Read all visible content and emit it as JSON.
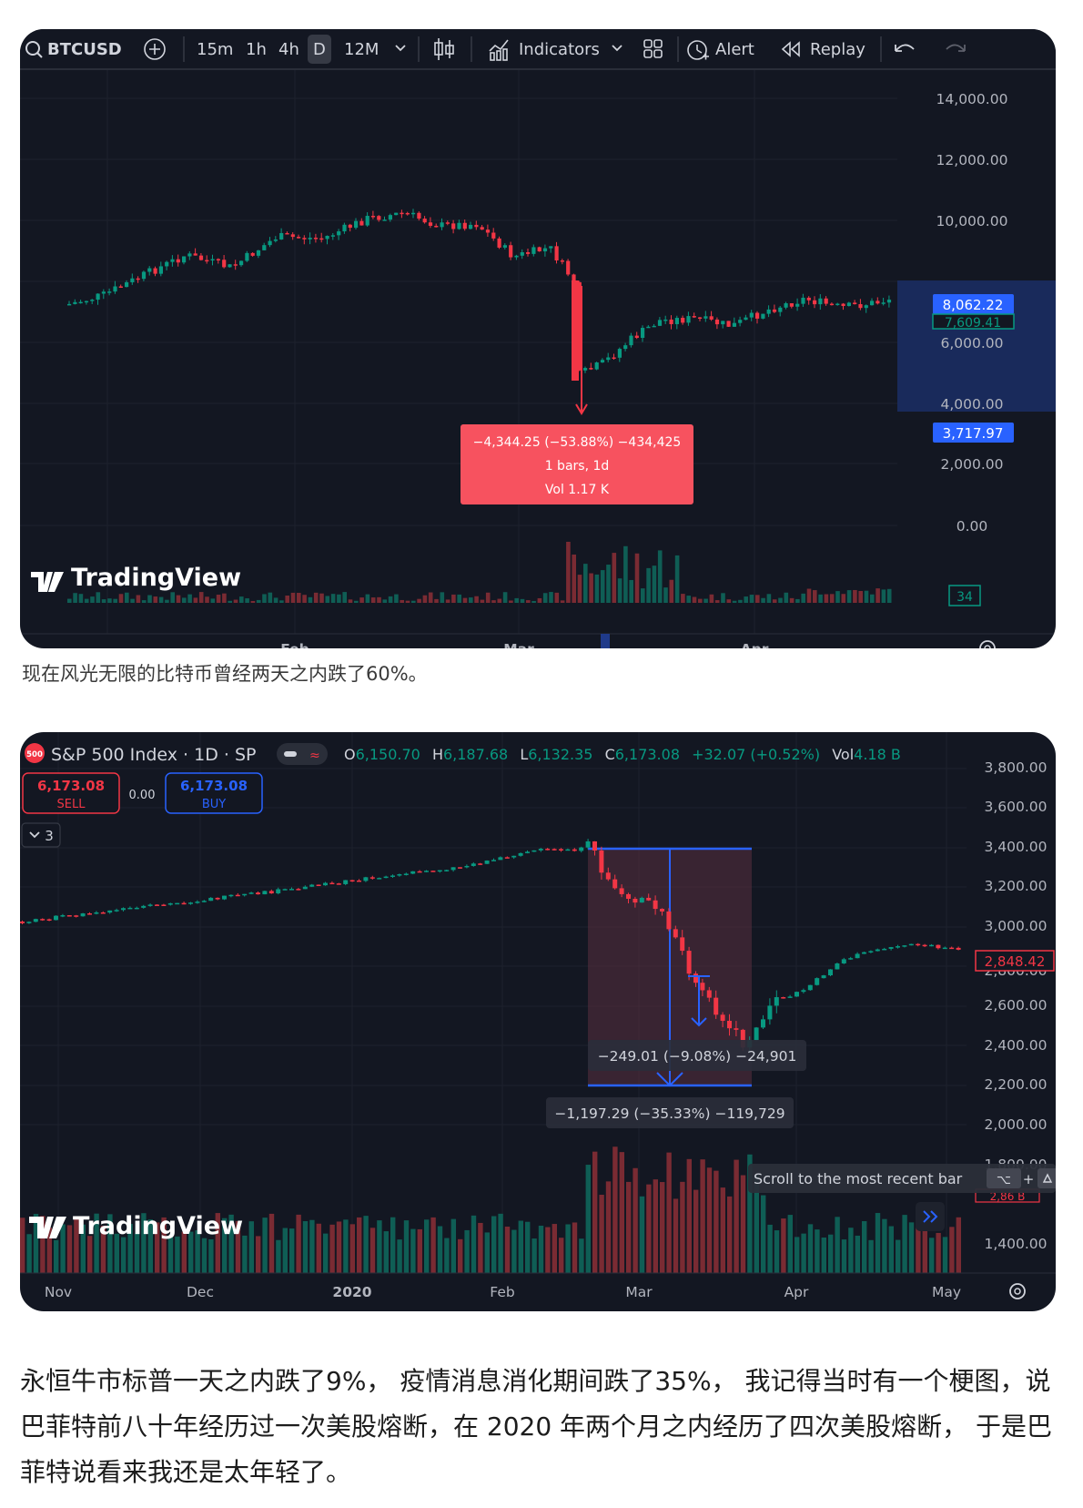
{
  "btc": {
    "toolbar": {
      "symbol": "BTCUSD",
      "intervals": [
        "15m",
        "1h",
        "4h",
        "D",
        "12M"
      ],
      "active_interval": "D",
      "indicators": "Indicators",
      "alert": "Alert",
      "replay": "Replay"
    },
    "price_axis": [
      "14,000.00",
      "12,000.00",
      "10,000.00",
      "6,000.00",
      "2,000.00",
      "0.00"
    ],
    "price_partial": [
      "4,000.00"
    ],
    "time_axis": [
      "Feb",
      "Mar",
      "Apr"
    ],
    "badges": {
      "high": "8,062.22",
      "current": "7,609.41",
      "low": "3,717.97",
      "volume": "34"
    },
    "measure": {
      "line1": "−4,344.25 (−53.88%) −434,425",
      "line2": "1 bars, 1d",
      "line3": "Vol 1.17 K"
    },
    "logo": "TradingView",
    "colors": {
      "up": "#089981",
      "down": "#f23645",
      "bg": "#131722",
      "badge": "#2962ff"
    }
  },
  "btc_caption": "现在风光无限的比特币曾经两天之内跌了60%。",
  "spx": {
    "header": {
      "logo_badge": "500",
      "title": "S&P 500 Index · 1D · SP",
      "o_label": "O",
      "o_val": "6,150.70",
      "h_label": "H",
      "h_val": "6,187.68",
      "l_label": "L",
      "l_val": "6,132.35",
      "c_label": "C",
      "c_val": "6,173.08",
      "change": "+32.07 (+0.52%)",
      "vol_label": "Vol",
      "vol_val": "4.18 B"
    },
    "sell": {
      "price": "6,173.08",
      "label": "SELL"
    },
    "spread": "0.00",
    "buy": {
      "price": "6,173.08",
      "label": "BUY"
    },
    "collapse_count": "3",
    "price_axis": [
      "3,800.00",
      "3,600.00",
      "3,400.00",
      "3,200.00",
      "3,000.00",
      "2,600.00",
      "2,400.00",
      "2,200.00",
      "2,000.00",
      "1,400.00"
    ],
    "price_partial": [
      "2,800.00",
      "1,800.00"
    ],
    "time_axis": [
      "Nov",
      "Dec",
      "2020",
      "Feb",
      "Mar",
      "Apr",
      "May"
    ],
    "current_price": "2,848.42",
    "volume_badge": "2,86 B",
    "measure_inner": "−249.01 (−9.08%) −24,901",
    "measure_outer": "−1,197.29 (−35.33%) −119,729",
    "tooltip": "Scroll to the most recent bar",
    "shortcut_key": "⌥",
    "shortcut_plus": "+",
    "logo": "TradingView"
  },
  "article": "永恒牛市标普一天之内跌了9%， 疫情消息消化期间跌了35%， 我记得当时有一个梗图，说巴菲特前八十年经历过一次美股熔断，在 2020 年两个月之内经历了四次美股熔断， 于是巴菲特说看来我还是太年轻了。"
}
